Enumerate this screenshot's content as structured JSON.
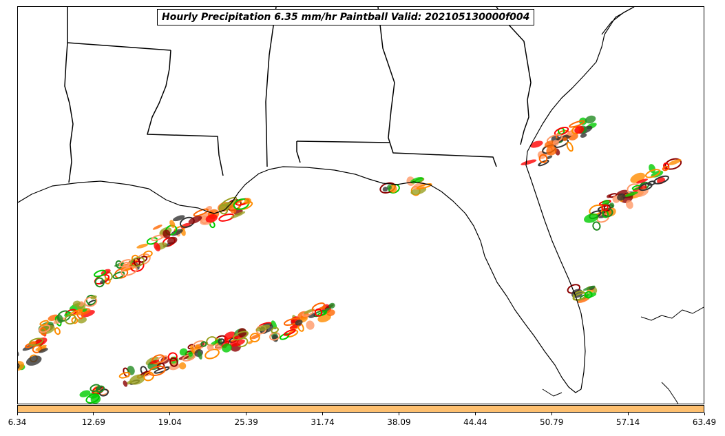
{
  "title": "Hourly Precipitation 6.35 mm/hr Paintball Valid: 202105130000f004",
  "colorbar": {
    "color": "#fdbf6f",
    "ticks": [
      "6.34",
      "12.69",
      "19.04",
      "25.39",
      "31.74",
      "38.09",
      "44.44",
      "50.79",
      "57.14",
      "63.49"
    ]
  },
  "member_colors": [
    "#ff0000",
    "#8b0000",
    "#ff8c00",
    "#ff6600",
    "#00cc00",
    "#228b22",
    "#9aa020",
    "#333333",
    "#ff9966"
  ]
}
